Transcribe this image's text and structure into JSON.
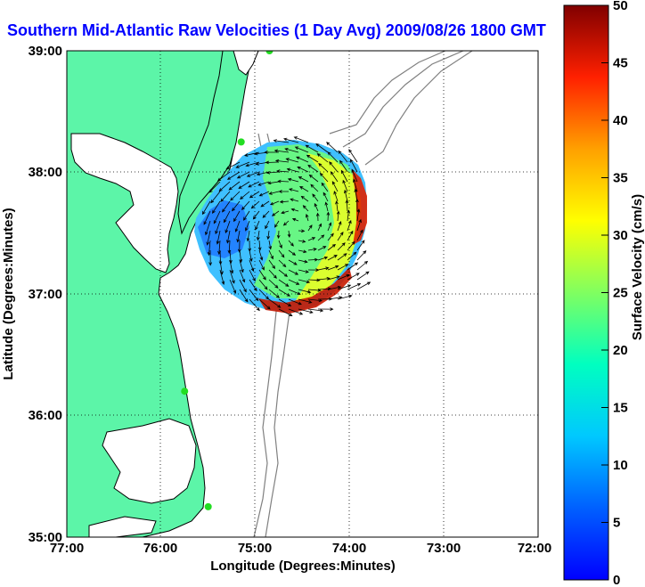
{
  "title": "Southern Mid-Atlantic Raw Velocities (1 Day Avg) 2009/08/26 1800 GMT",
  "xlabel": "Longitude (Degrees:Minutes)",
  "ylabel": "Latitude (Degrees:Minutes)",
  "x_ticks": [
    "77:00",
    "76:00",
    "75:00",
    "74:00",
    "73:00",
    "72:00"
  ],
  "y_ticks": [
    "39:00",
    "38:00",
    "37:00",
    "36:00",
    "35:00"
  ],
  "colorbar": {
    "label": "Surface Velocity (cm/s)",
    "ticks": [
      "0",
      "5",
      "10",
      "15",
      "20",
      "25",
      "30",
      "35",
      "40",
      "45",
      "50"
    ]
  },
  "colors": {
    "land": "#5cf5a8",
    "ocean": "#ffffff",
    "title": "#0000ff",
    "coast": "#000000",
    "bathymetry": "#808080",
    "station": "#22dd22"
  },
  "chart_data": {
    "type": "heatmap",
    "subtype": "current-vector-field",
    "xlim": [
      -77,
      -72
    ],
    "ylim": [
      35,
      39
    ],
    "colorbar_range": [
      0,
      50
    ],
    "colormap": "jet",
    "grid": true,
    "stations": [
      {
        "lon": -74.85,
        "lat": 39.0
      },
      {
        "lon": -75.15,
        "lat": 38.25
      },
      {
        "lon": -75.75,
        "lat": 36.2
      },
      {
        "lon": -75.5,
        "lat": 35.25
      }
    ],
    "velocity_field": {
      "center": {
        "lon": -74.55,
        "lat": 37.55
      },
      "description_values": [
        {
          "region": "western",
          "speed_cm_s": 7
        },
        {
          "region": "central",
          "speed_cm_s": 18
        },
        {
          "region": "eastern edge",
          "speed_cm_s": 45
        },
        {
          "region": "southern edge",
          "speed_cm_s": 44
        }
      ]
    }
  }
}
